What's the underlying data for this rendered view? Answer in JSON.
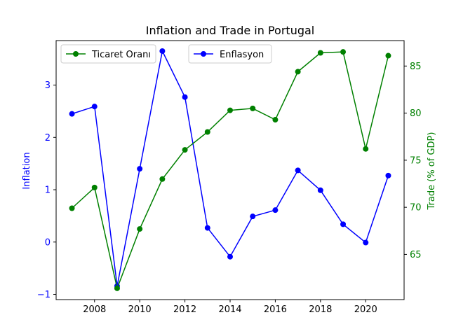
{
  "chart_data": {
    "type": "line",
    "title": "Inflation and Trade in Portugal",
    "x": [
      2007,
      2008,
      2009,
      2010,
      2011,
      2012,
      2013,
      2014,
      2015,
      2016,
      2017,
      2018,
      2019,
      2020,
      2021
    ],
    "xticks": [
      2008,
      2010,
      2012,
      2014,
      2016,
      2018,
      2020
    ],
    "xlim": [
      2006.3,
      2021.7
    ],
    "left_axis": {
      "label": "Inflation",
      "color": "#0000ff",
      "ylim": [
        -1.1,
        3.85
      ],
      "ticks": [
        -1,
        0,
        1,
        2,
        3
      ]
    },
    "right_axis": {
      "label": "Trade (% of GDP)",
      "color": "#008000",
      "ylim": [
        60.2,
        87.7
      ],
      "ticks": [
        65,
        70,
        75,
        80,
        85
      ]
    },
    "series": [
      {
        "name": "Enflasyon",
        "axis": "left",
        "color": "#0000ff",
        "values": [
          2.45,
          2.59,
          -0.84,
          1.4,
          3.65,
          2.77,
          0.27,
          -0.28,
          0.49,
          0.61,
          1.37,
          0.99,
          0.34,
          -0.01,
          1.27
        ]
      },
      {
        "name": "Ticaret Oranı",
        "axis": "right",
        "color": "#008000",
        "values": [
          69.9,
          72.1,
          61.4,
          67.7,
          73.0,
          76.1,
          78.0,
          80.3,
          80.5,
          79.3,
          84.4,
          86.4,
          86.5,
          76.2,
          86.1
        ]
      }
    ],
    "legends": [
      {
        "position": "upper-left",
        "series": 1
      },
      {
        "position": "upper-center",
        "series": 0
      }
    ],
    "grid": false
  }
}
